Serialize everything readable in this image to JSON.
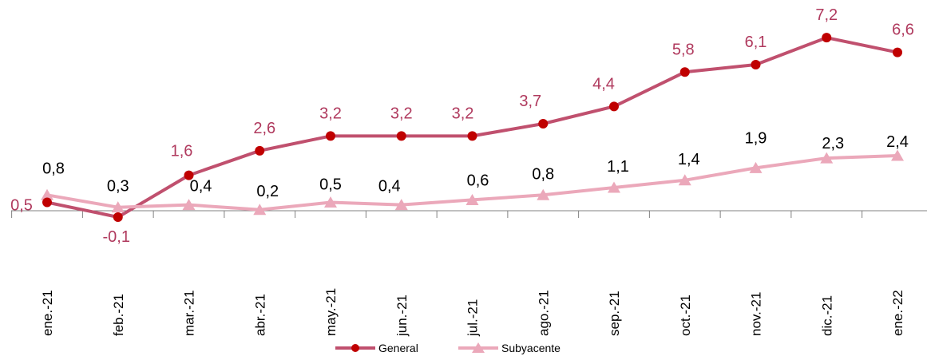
{
  "chart_data": {
    "type": "line",
    "title": "",
    "xlabel": "",
    "ylabel": "",
    "categories": [
      "ene.-21",
      "feb.-21",
      "mar.-21",
      "abr.-21",
      "may.-21",
      "jun.-21",
      "jul.-21",
      "ago.-21",
      "sep.-21",
      "oct.-21",
      "nov.-21",
      "dic.-21",
      "ene.-22"
    ],
    "ylim": [
      -0.1,
      7.4
    ],
    "grid": false,
    "legend": "bottom",
    "series": [
      {
        "name": "General",
        "color": "#c0506e",
        "marker_color": "#c00000",
        "marker": "circle",
        "label_color": "#b03a5e",
        "values": [
          0.5,
          -0.1,
          1.6,
          2.6,
          3.2,
          3.2,
          3.2,
          3.7,
          4.4,
          5.8,
          6.1,
          7.2,
          6.6
        ],
        "labels": [
          "0,5",
          "-0,1",
          "1,6",
          "2,6",
          "3,2",
          "3,2",
          "3,2",
          "3,7",
          "4,4",
          "5,8",
          "6,1",
          "7,2",
          "6,6"
        ]
      },
      {
        "name": "Subyacente",
        "color": "#eba8ba",
        "marker_color": "#eba8ba",
        "marker": "triangle",
        "label_color": "#000000",
        "values": [
          0.8,
          0.3,
          0.4,
          0.2,
          0.5,
          0.4,
          0.6,
          0.8,
          1.1,
          1.4,
          1.9,
          2.3,
          2.4
        ],
        "labels": [
          "0,8",
          "0,3",
          "0,4",
          "0,2",
          "0,5",
          "0,4",
          "0,6",
          "0,8",
          "1,1",
          "1,4",
          "1,9",
          "2,3",
          "2,4"
        ]
      }
    ]
  }
}
